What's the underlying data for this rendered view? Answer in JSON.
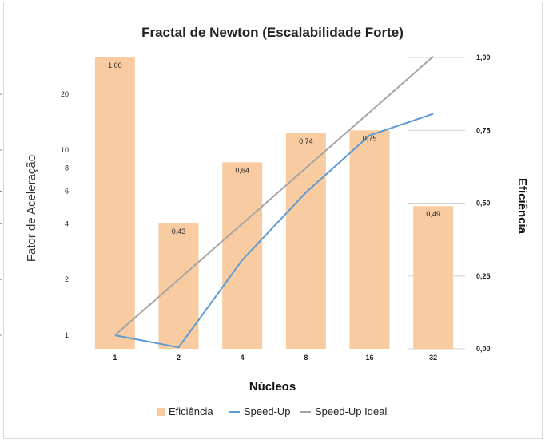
{
  "chart_data": {
    "type": "bar+line",
    "title": "Fractal de Newton (Escalabilidade Forte)",
    "xlabel": "Núcleos",
    "ylabel_left": "Fator de Aceleração",
    "ylabel_right": "Eficiência",
    "categories": [
      "1",
      "2",
      "4",
      "8",
      "16",
      "32"
    ],
    "left_axis": {
      "scale": "log",
      "ticks": [
        "1",
        "2",
        "4",
        "6",
        "8",
        "10",
        "20"
      ],
      "tick_values": [
        1,
        2,
        4,
        6,
        8,
        10,
        20
      ],
      "ylim": [
        0.95,
        35
      ]
    },
    "right_axis": {
      "ticks": [
        "0,00",
        "0,25",
        "0,50",
        "0,75",
        "1,00"
      ],
      "tick_values": [
        0,
        0.25,
        0.5,
        0.75,
        1.0
      ],
      "ylim": [
        0,
        1
      ]
    },
    "grid": "horizontal, right side only",
    "legend_position": "bottom",
    "series": [
      {
        "name": "Eficiência",
        "type": "bar",
        "axis": "right",
        "color": "#f8cba0",
        "values": [
          1.0,
          0.43,
          0.64,
          0.74,
          0.75,
          0.49
        ],
        "labels": [
          "1,00",
          "0,43",
          "0,64",
          "0,74",
          "0,75",
          "0,49"
        ]
      },
      {
        "name": "Speed-Up",
        "type": "line",
        "axis": "left",
        "color": "#5b9bd5",
        "values": [
          1.0,
          0.86,
          2.55,
          5.9,
          12.0,
          15.7
        ]
      },
      {
        "name": "Speed-Up Ideal",
        "type": "line",
        "axis": "left",
        "color": "#a5a5a5",
        "values": [
          1,
          2,
          4,
          8,
          16,
          32
        ]
      }
    ]
  }
}
